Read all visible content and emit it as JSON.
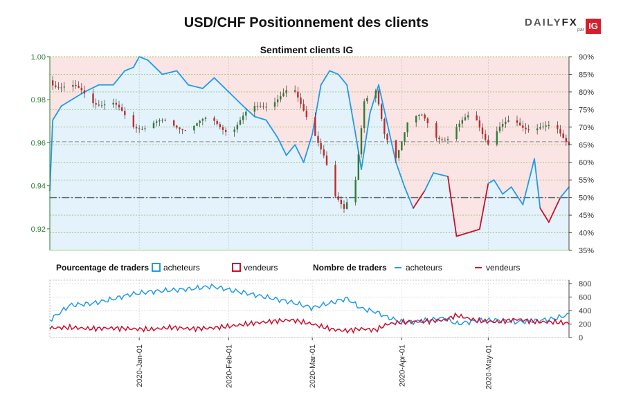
{
  "title": "USD/CHF Positionnement des clients",
  "logo": {
    "brand": "DAILYFX",
    "brand_a": "DAILY",
    "brand_b": "FX",
    "par": "par",
    "ig": "IG"
  },
  "colors": {
    "buyers": "#1f9be8",
    "sellers": "#c8102e",
    "buyers_fill": "#e3f2fb",
    "sellers_fill": "#fbe4e4",
    "candle_up": "#2e7d32",
    "candle_down": "#c62828",
    "axis_green": "#2e7d32"
  },
  "chart_data": [
    {
      "type": "candlestick+area",
      "title": "Sentiment clients IG",
      "x_range": [
        "2019-12-01",
        "2020-05-29"
      ],
      "date_ticks": [
        "2020-Jan-01",
        "2020-Feb-01",
        "2020-Mar-01",
        "2020-Apr-01",
        "2020-May-01"
      ],
      "y_left": {
        "range": [
          0.91,
          1.0
        ],
        "ticks": [
          "0.92",
          "0.94",
          "0.96",
          "0.98",
          "1.00"
        ]
      },
      "y_right": {
        "range": [
          35,
          90
        ],
        "ticks": [
          "35%",
          "40%",
          "45%",
          "50%",
          "55%",
          "60%",
          "65%",
          "70%",
          "75%",
          "80%",
          "85%",
          "90%"
        ]
      },
      "reference_lines": {
        "price_level": 0.9605,
        "percent_level": 50
      },
      "price_ohlc_anchors": [
        {
          "x": "2019-12-01",
          "close": 0.989
        },
        {
          "x": "2019-12-08",
          "close": 0.986
        },
        {
          "x": "2019-12-15",
          "close": 0.98
        },
        {
          "x": "2019-12-22",
          "close": 0.979
        },
        {
          "x": "2019-12-29",
          "close": 0.968
        },
        {
          "x": "2020-01-05",
          "close": 0.969
        },
        {
          "x": "2020-01-12",
          "close": 0.968
        },
        {
          "x": "2020-01-19",
          "close": 0.968
        },
        {
          "x": "2020-01-26",
          "close": 0.97
        },
        {
          "x": "2020-02-02",
          "close": 0.966
        },
        {
          "x": "2020-02-09",
          "close": 0.975
        },
        {
          "x": "2020-02-16",
          "close": 0.98
        },
        {
          "x": "2020-02-23",
          "close": 0.984
        },
        {
          "x": "2020-03-01",
          "close": 0.969
        },
        {
          "x": "2020-03-05",
          "close": 0.954
        },
        {
          "x": "2020-03-09",
          "close": 0.933
        },
        {
          "x": "2020-03-12",
          "close": 0.929
        },
        {
          "x": "2020-03-16",
          "close": 0.945
        },
        {
          "x": "2020-03-19",
          "close": 0.98
        },
        {
          "x": "2020-03-23",
          "close": 0.982
        },
        {
          "x": "2020-03-26",
          "close": 0.963
        },
        {
          "x": "2020-03-30",
          "close": 0.955
        },
        {
          "x": "2020-04-03",
          "close": 0.97
        },
        {
          "x": "2020-04-08",
          "close": 0.971
        },
        {
          "x": "2020-04-13",
          "close": 0.964
        },
        {
          "x": "2020-04-17",
          "close": 0.963
        },
        {
          "x": "2020-04-21",
          "close": 0.967
        },
        {
          "x": "2020-04-26",
          "close": 0.974
        },
        {
          "x": "2020-05-01",
          "close": 0.961
        },
        {
          "x": "2020-05-05",
          "close": 0.966
        },
        {
          "x": "2020-05-10",
          "close": 0.97
        },
        {
          "x": "2020-05-15",
          "close": 0.968
        },
        {
          "x": "2020-05-20",
          "close": 0.966
        },
        {
          "x": "2020-05-25",
          "close": 0.966
        },
        {
          "x": "2020-05-29",
          "close": 0.961
        }
      ],
      "buyers_pct": [
        {
          "x": "2019-12-01",
          "y": 52
        },
        {
          "x": "2019-12-02",
          "y": 72
        },
        {
          "x": "2019-12-05",
          "y": 76
        },
        {
          "x": "2019-12-09",
          "y": 78
        },
        {
          "x": "2019-12-13",
          "y": 80
        },
        {
          "x": "2019-12-18",
          "y": 82
        },
        {
          "x": "2019-12-23",
          "y": 82
        },
        {
          "x": "2019-12-27",
          "y": 86
        },
        {
          "x": "2019-12-30",
          "y": 87
        },
        {
          "x": "2020-01-01",
          "y": 90
        },
        {
          "x": "2020-01-04",
          "y": 89
        },
        {
          "x": "2020-01-09",
          "y": 85
        },
        {
          "x": "2020-01-14",
          "y": 86
        },
        {
          "x": "2020-01-18",
          "y": 82
        },
        {
          "x": "2020-01-23",
          "y": 81
        },
        {
          "x": "2020-01-27",
          "y": 84
        },
        {
          "x": "2020-02-01",
          "y": 80
        },
        {
          "x": "2020-02-06",
          "y": 76
        },
        {
          "x": "2020-02-10",
          "y": 73
        },
        {
          "x": "2020-02-14",
          "y": 72
        },
        {
          "x": "2020-02-18",
          "y": 67
        },
        {
          "x": "2020-02-21",
          "y": 62
        },
        {
          "x": "2020-02-24",
          "y": 65
        },
        {
          "x": "2020-02-27",
          "y": 60
        },
        {
          "x": "2020-03-01",
          "y": 68
        },
        {
          "x": "2020-03-04",
          "y": 82
        },
        {
          "x": "2020-03-07",
          "y": 86
        },
        {
          "x": "2020-03-10",
          "y": 85
        },
        {
          "x": "2020-03-13",
          "y": 82
        },
        {
          "x": "2020-03-16",
          "y": 68
        },
        {
          "x": "2020-03-18",
          "y": 58
        },
        {
          "x": "2020-03-21",
          "y": 74
        },
        {
          "x": "2020-03-24",
          "y": 82
        },
        {
          "x": "2020-03-27",
          "y": 71
        },
        {
          "x": "2020-03-30",
          "y": 60
        },
        {
          "x": "2020-04-02",
          "y": 53
        },
        {
          "x": "2020-04-05",
          "y": 47
        },
        {
          "x": "2020-04-09",
          "y": 52
        },
        {
          "x": "2020-04-12",
          "y": 57
        },
        {
          "x": "2020-04-17",
          "y": 56
        },
        {
          "x": "2020-04-20",
          "y": 39
        },
        {
          "x": "2020-04-24",
          "y": 40
        },
        {
          "x": "2020-04-28",
          "y": 41
        },
        {
          "x": "2020-05-01",
          "y": 54
        },
        {
          "x": "2020-05-03",
          "y": 55
        },
        {
          "x": "2020-05-06",
          "y": 51
        },
        {
          "x": "2020-05-09",
          "y": 53
        },
        {
          "x": "2020-05-13",
          "y": 48
        },
        {
          "x": "2020-05-17",
          "y": 61
        },
        {
          "x": "2020-05-19",
          "y": 47
        },
        {
          "x": "2020-05-22",
          "y": 43
        },
        {
          "x": "2020-05-26",
          "y": 50
        },
        {
          "x": "2020-05-29",
          "y": 53
        }
      ],
      "traders_count": {
        "y_range": [
          0,
          850
        ],
        "ticks": [
          "0",
          "200",
          "400",
          "600",
          "800"
        ],
        "buyers": [
          {
            "x": "2019-12-01",
            "y": 260
          },
          {
            "x": "2019-12-08",
            "y": 480
          },
          {
            "x": "2019-12-15",
            "y": 500
          },
          {
            "x": "2019-12-22",
            "y": 560
          },
          {
            "x": "2019-12-29",
            "y": 640
          },
          {
            "x": "2020-01-05",
            "y": 680
          },
          {
            "x": "2020-01-12",
            "y": 700
          },
          {
            "x": "2020-01-19",
            "y": 720
          },
          {
            "x": "2020-01-26",
            "y": 760
          },
          {
            "x": "2020-02-02",
            "y": 700
          },
          {
            "x": "2020-02-09",
            "y": 640
          },
          {
            "x": "2020-02-16",
            "y": 580
          },
          {
            "x": "2020-02-23",
            "y": 520
          },
          {
            "x": "2020-03-01",
            "y": 440
          },
          {
            "x": "2020-03-08",
            "y": 520
          },
          {
            "x": "2020-03-13",
            "y": 580
          },
          {
            "x": "2020-03-18",
            "y": 430
          },
          {
            "x": "2020-03-23",
            "y": 380
          },
          {
            "x": "2020-03-27",
            "y": 300
          },
          {
            "x": "2020-04-02",
            "y": 220
          },
          {
            "x": "2020-04-09",
            "y": 250
          },
          {
            "x": "2020-04-16",
            "y": 290
          },
          {
            "x": "2020-04-20",
            "y": 200
          },
          {
            "x": "2020-04-27",
            "y": 250
          },
          {
            "x": "2020-05-04",
            "y": 260
          },
          {
            "x": "2020-05-11",
            "y": 230
          },
          {
            "x": "2020-05-18",
            "y": 250
          },
          {
            "x": "2020-05-24",
            "y": 280
          },
          {
            "x": "2020-05-29",
            "y": 340
          }
        ],
        "sellers": [
          {
            "x": "2019-12-01",
            "y": 140
          },
          {
            "x": "2019-12-08",
            "y": 150
          },
          {
            "x": "2019-12-15",
            "y": 130
          },
          {
            "x": "2019-12-22",
            "y": 140
          },
          {
            "x": "2019-12-29",
            "y": 130
          },
          {
            "x": "2020-01-05",
            "y": 120
          },
          {
            "x": "2020-01-12",
            "y": 150
          },
          {
            "x": "2020-01-19",
            "y": 130
          },
          {
            "x": "2020-01-26",
            "y": 140
          },
          {
            "x": "2020-02-02",
            "y": 170
          },
          {
            "x": "2020-02-09",
            "y": 210
          },
          {
            "x": "2020-02-16",
            "y": 240
          },
          {
            "x": "2020-02-23",
            "y": 260
          },
          {
            "x": "2020-03-01",
            "y": 200
          },
          {
            "x": "2020-03-08",
            "y": 120
          },
          {
            "x": "2020-03-13",
            "y": 100
          },
          {
            "x": "2020-03-18",
            "y": 130
          },
          {
            "x": "2020-03-23",
            "y": 110
          },
          {
            "x": "2020-03-27",
            "y": 200
          },
          {
            "x": "2020-04-02",
            "y": 230
          },
          {
            "x": "2020-04-09",
            "y": 240
          },
          {
            "x": "2020-04-16",
            "y": 260
          },
          {
            "x": "2020-04-20",
            "y": 330
          },
          {
            "x": "2020-04-27",
            "y": 250
          },
          {
            "x": "2020-05-04",
            "y": 230
          },
          {
            "x": "2020-05-11",
            "y": 270
          },
          {
            "x": "2020-05-18",
            "y": 230
          },
          {
            "x": "2020-05-24",
            "y": 230
          },
          {
            "x": "2020-05-29",
            "y": 210
          }
        ]
      },
      "legend": {
        "pct_title": "Pourcentage de traders",
        "count_title": "Nombre de traders",
        "buyers": "acheteurs",
        "sellers": "vendeurs"
      }
    }
  ]
}
